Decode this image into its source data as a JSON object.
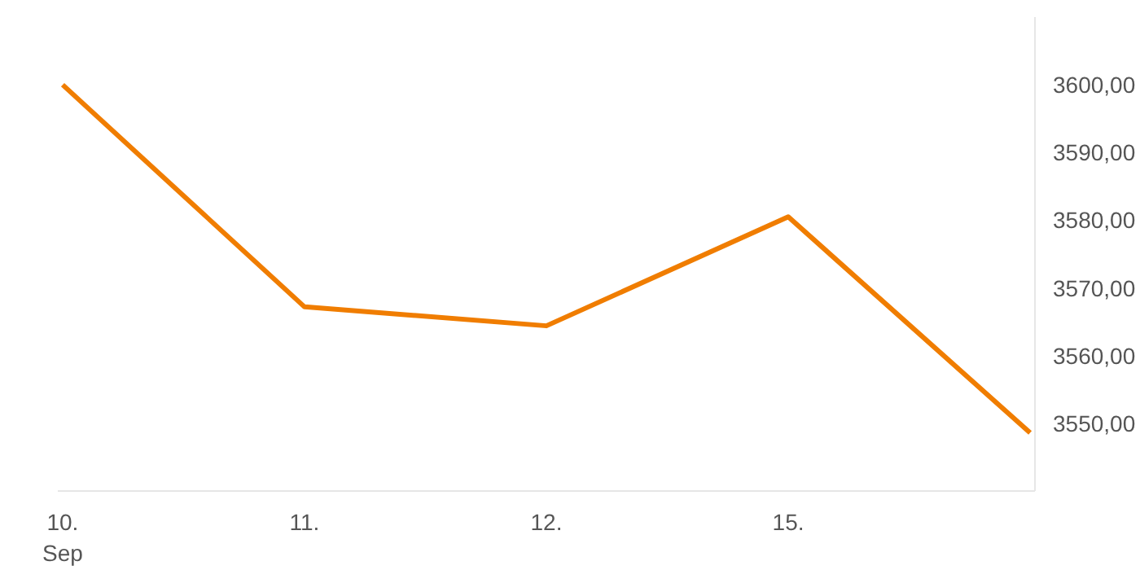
{
  "chart_data": {
    "type": "line",
    "categories": [
      "10.\nSep",
      "11.",
      "12.",
      "15.",
      null
    ],
    "series": [
      {
        "color": "#f07d00",
        "values": [
          3600.0,
          3567.2,
          3564.4,
          3580.5,
          3548.6
        ]
      }
    ],
    "yticks": [
      {
        "value": 3550,
        "label": "3550,00"
      },
      {
        "value": 3560,
        "label": "3560,00"
      },
      {
        "value": 3570,
        "label": "3570,00"
      },
      {
        "value": 3580,
        "label": "3580,00"
      },
      {
        "value": 3590,
        "label": "3590,00"
      },
      {
        "value": 3600,
        "label": "3600,00"
      }
    ],
    "ylim": [
      3540,
      3610
    ],
    "marker": "none",
    "line_style": "solid"
  }
}
